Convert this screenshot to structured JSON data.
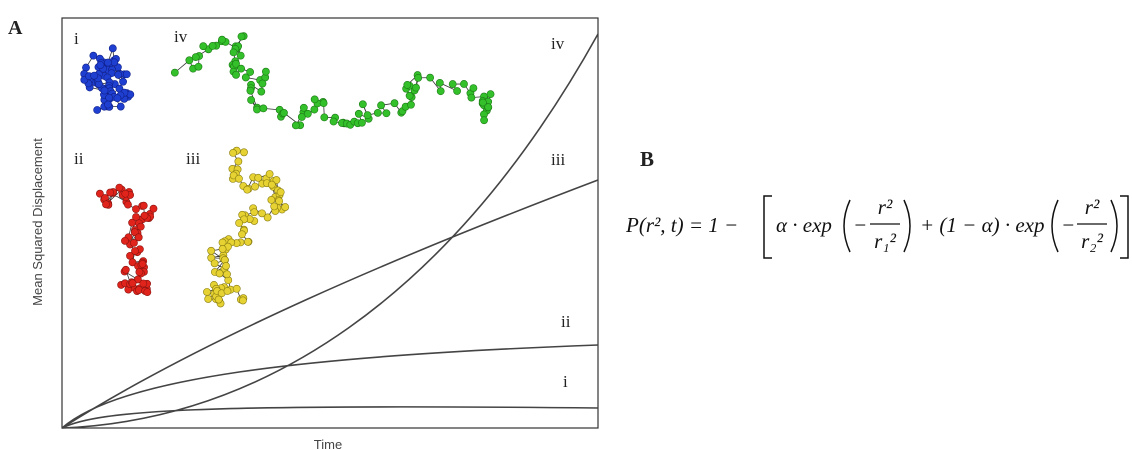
{
  "panel_a": {
    "label": "A",
    "y_label": "Mean Squared Displacement",
    "x_label": "Time",
    "curve_labels": [
      "i",
      "ii",
      "iii",
      "iv"
    ],
    "trajectory_labels": [
      "i",
      "ii",
      "iii",
      "iv"
    ]
  },
  "panel_b": {
    "label": "B",
    "equation": {
      "lhs": "P(r², t) = 1 −",
      "term1": "α · exp",
      "neg1": "−",
      "num1": "r²",
      "den1": "r₁²",
      "term2": "+ (1 − α) · exp",
      "neg2": "−",
      "num2": "r²",
      "den2": "r₂²"
    }
  }
}
